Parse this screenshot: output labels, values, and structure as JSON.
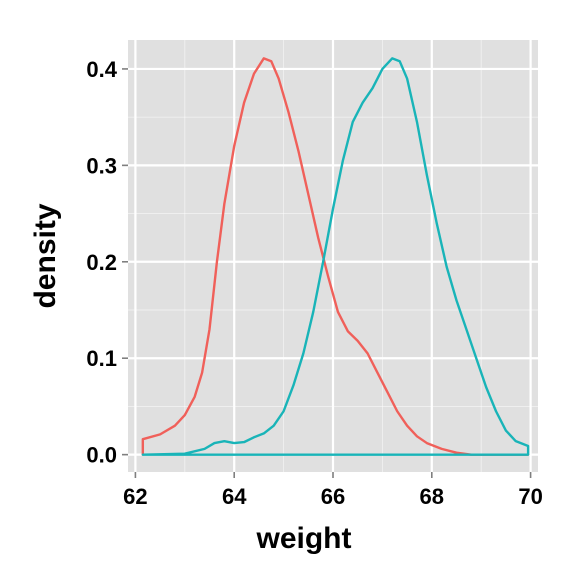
{
  "chart_data": {
    "type": "line",
    "title": "",
    "xlabel": "weight",
    "ylabel": "density",
    "xlim": [
      61.85,
      70.15
    ],
    "ylim": [
      -0.018,
      0.43
    ],
    "x_ticks": [
      62,
      64,
      66,
      68,
      70
    ],
    "x_tick_labels": [
      "62",
      "64",
      "66",
      "68",
      "70"
    ],
    "y_ticks": [
      0.0,
      0.1,
      0.2,
      0.3,
      0.4
    ],
    "y_tick_labels": [
      "0.0",
      "0.1",
      "0.2",
      "0.3",
      "0.4"
    ],
    "x_minor_ticks": [
      63,
      65,
      67,
      69
    ],
    "y_minor_ticks": [
      0.05,
      0.15,
      0.25,
      0.35
    ],
    "grid": true,
    "legend": "none",
    "panel_background": "#e0e0e0",
    "grid_color": "#ffffff",
    "series": [
      {
        "color": "#f0605a",
        "points": [
          [
            62.15,
            0.0
          ],
          [
            62.15,
            0.016
          ],
          [
            62.5,
            0.021
          ],
          [
            62.8,
            0.03
          ],
          [
            63.0,
            0.041
          ],
          [
            63.2,
            0.06
          ],
          [
            63.35,
            0.085
          ],
          [
            63.5,
            0.13
          ],
          [
            63.65,
            0.2
          ],
          [
            63.8,
            0.26
          ],
          [
            64.0,
            0.32
          ],
          [
            64.2,
            0.365
          ],
          [
            64.4,
            0.395
          ],
          [
            64.6,
            0.411
          ],
          [
            64.75,
            0.408
          ],
          [
            64.9,
            0.39
          ],
          [
            65.1,
            0.355
          ],
          [
            65.3,
            0.315
          ],
          [
            65.5,
            0.27
          ],
          [
            65.7,
            0.225
          ],
          [
            65.9,
            0.185
          ],
          [
            66.1,
            0.148
          ],
          [
            66.3,
            0.128
          ],
          [
            66.5,
            0.118
          ],
          [
            66.7,
            0.105
          ],
          [
            66.9,
            0.085
          ],
          [
            67.1,
            0.065
          ],
          [
            67.3,
            0.045
          ],
          [
            67.5,
            0.03
          ],
          [
            67.7,
            0.019
          ],
          [
            67.9,
            0.012
          ],
          [
            68.2,
            0.006
          ],
          [
            68.5,
            0.002
          ],
          [
            68.8,
            0.0
          ],
          [
            69.95,
            0.0
          ]
        ]
      },
      {
        "color": "#19b4b8",
        "points": [
          [
            62.15,
            0.0
          ],
          [
            63.0,
            0.001
          ],
          [
            63.4,
            0.006
          ],
          [
            63.6,
            0.012
          ],
          [
            63.8,
            0.014
          ],
          [
            64.0,
            0.012
          ],
          [
            64.2,
            0.013
          ],
          [
            64.4,
            0.018
          ],
          [
            64.6,
            0.022
          ],
          [
            64.8,
            0.03
          ],
          [
            65.0,
            0.045
          ],
          [
            65.2,
            0.072
          ],
          [
            65.4,
            0.105
          ],
          [
            65.6,
            0.148
          ],
          [
            65.8,
            0.2
          ],
          [
            66.0,
            0.255
          ],
          [
            66.2,
            0.305
          ],
          [
            66.4,
            0.345
          ],
          [
            66.6,
            0.365
          ],
          [
            66.8,
            0.38
          ],
          [
            67.0,
            0.4
          ],
          [
            67.2,
            0.411
          ],
          [
            67.35,
            0.408
          ],
          [
            67.5,
            0.39
          ],
          [
            67.7,
            0.345
          ],
          [
            67.9,
            0.29
          ],
          [
            68.1,
            0.24
          ],
          [
            68.3,
            0.195
          ],
          [
            68.5,
            0.16
          ],
          [
            68.7,
            0.13
          ],
          [
            68.9,
            0.1
          ],
          [
            69.1,
            0.07
          ],
          [
            69.3,
            0.045
          ],
          [
            69.5,
            0.025
          ],
          [
            69.7,
            0.014
          ],
          [
            69.95,
            0.009
          ],
          [
            69.95,
            0.0
          ],
          [
            62.15,
            0.0
          ]
        ]
      }
    ]
  }
}
